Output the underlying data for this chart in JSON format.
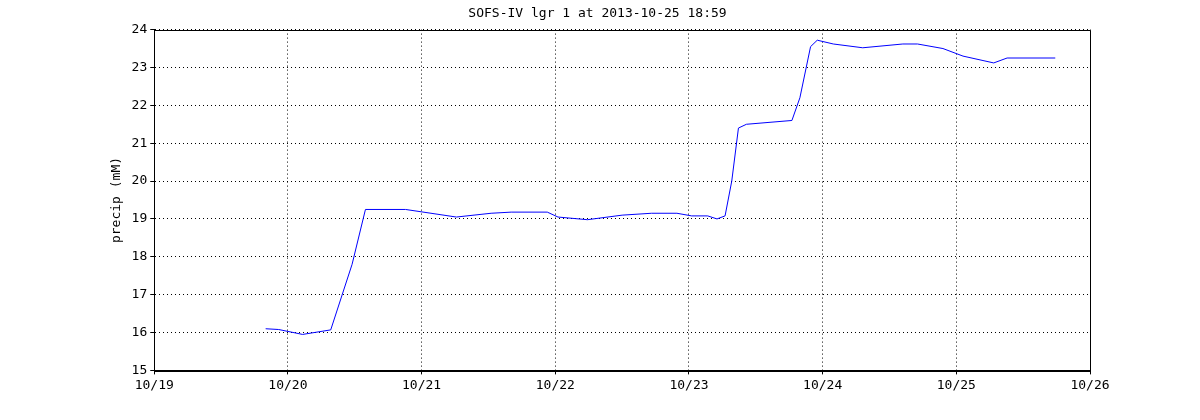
{
  "chart_data": {
    "type": "line",
    "title": "SOFS-IV lgr 1 at 2013-10-25 18:59",
    "ylabel": "precip (mM)",
    "x": [
      "2013-10-19T20:00",
      "2013-10-19T22:20",
      "2013-10-20T02:38",
      "2013-10-20T07:41",
      "2013-10-20T11:31",
      "2013-10-20T13:55",
      "2013-10-20T21:07",
      "2013-10-21T01:41",
      "2013-10-21T06:14",
      "2013-10-21T12:29",
      "2013-10-21T16:05",
      "2013-10-21T22:34",
      "2013-10-22T00:29",
      "2013-10-22T05:46",
      "2013-10-22T12:00",
      "2013-10-22T17:17",
      "2013-10-22T21:50",
      "2013-10-23T00:29",
      "2013-10-23T03:22",
      "2013-10-23T05:02",
      "2013-10-23T06:29",
      "2013-10-23T07:41",
      "2013-10-23T08:53",
      "2013-10-23T10:19",
      "2013-10-23T18:29",
      "2013-10-23T19:55",
      "2013-10-23T21:50",
      "2013-10-23T23:02",
      "2013-10-24T01:55",
      "2013-10-24T07:12",
      "2013-10-24T14:24",
      "2013-10-24T17:02",
      "2013-10-24T21:36",
      "2013-10-25T01:12",
      "2013-10-25T06:43",
      "2013-10-25T09:07",
      "2013-10-25T17:46"
    ],
    "series": [
      {
        "color": "#0000ff",
        "values": [
          16.1,
          16.08,
          15.95,
          16.07,
          17.8,
          19.25,
          19.25,
          19.15,
          19.05,
          19.15,
          19.18,
          19.18,
          19.05,
          18.98,
          19.1,
          19.15,
          19.15,
          19.08,
          19.08,
          19.0,
          19.08,
          20.0,
          21.4,
          21.5,
          21.6,
          22.2,
          23.55,
          23.72,
          23.62,
          23.52,
          23.62,
          23.62,
          23.5,
          23.3,
          23.12,
          23.25,
          23.25
        ]
      }
    ],
    "xlim": [
      "2013-10-19",
      "2013-10-26"
    ],
    "xticks": [
      {
        "value": "2013-10-19",
        "label": "10/19"
      },
      {
        "value": "2013-10-20",
        "label": "10/20"
      },
      {
        "value": "2013-10-21",
        "label": "10/21"
      },
      {
        "value": "2013-10-22",
        "label": "10/22"
      },
      {
        "value": "2013-10-23",
        "label": "10/23"
      },
      {
        "value": "2013-10-24",
        "label": "10/24"
      },
      {
        "value": "2013-10-25",
        "label": "10/25"
      },
      {
        "value": "2013-10-26",
        "label": "10/26"
      }
    ],
    "ylim": [
      15,
      24
    ],
    "yticks": [
      15,
      16,
      17,
      18,
      19,
      20,
      21,
      22,
      23,
      24
    ],
    "grid": true,
    "legend": false,
    "marker": "none",
    "line_style": "solid"
  }
}
